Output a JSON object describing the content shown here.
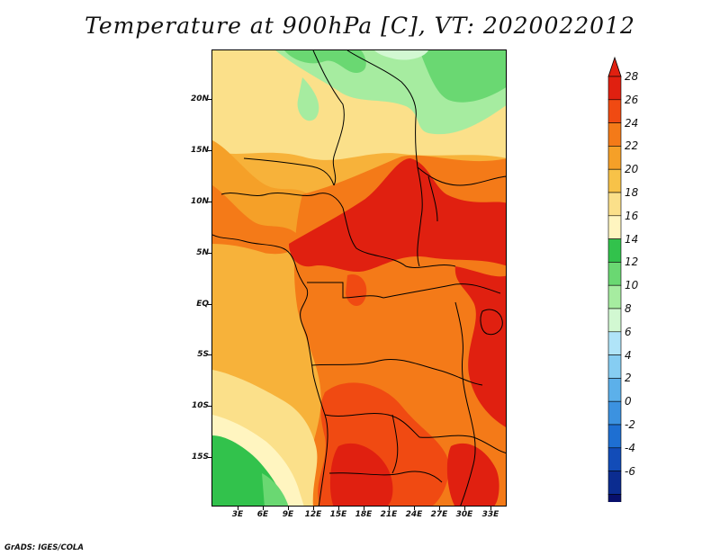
{
  "title": "Temperature at 900hPa [C], VT: 2020022012",
  "credit": "GrADS: IGES/COLA",
  "map": {
    "variable": "Temperature",
    "level": "900hPa",
    "units": "C",
    "valid_time": "2020022012",
    "lat_labels": [
      "20N",
      "15N",
      "10N",
      "5N",
      "EQ",
      "5S",
      "10S",
      "15S"
    ],
    "lon_labels": [
      "3E",
      "6E",
      "9E",
      "12E",
      "15E",
      "18E",
      "21E",
      "24E",
      "27E",
      "30E",
      "33E"
    ]
  },
  "colorbar": {
    "labels": [
      "28",
      "26",
      "24",
      "22",
      "20",
      "18",
      "16",
      "14",
      "12",
      "10",
      "8",
      "6",
      "4",
      "2",
      "0",
      "-2",
      "-4",
      "-6"
    ],
    "colors": [
      "#e02010",
      "#f04a12",
      "#f47a18",
      "#f5a028",
      "#f7c248",
      "#fbe08a",
      "#fff5c0",
      "#32c24c",
      "#6ad872",
      "#a6eca0",
      "#d2f8d2",
      "#b0e4f8",
      "#86cdf2",
      "#5cb0ea",
      "#3c92e0",
      "#1e6fd2",
      "#124cb8",
      "#0b2c90",
      "#08106c"
    ],
    "over_color": "#e02010",
    "under_color": "#d6d6ff"
  }
}
